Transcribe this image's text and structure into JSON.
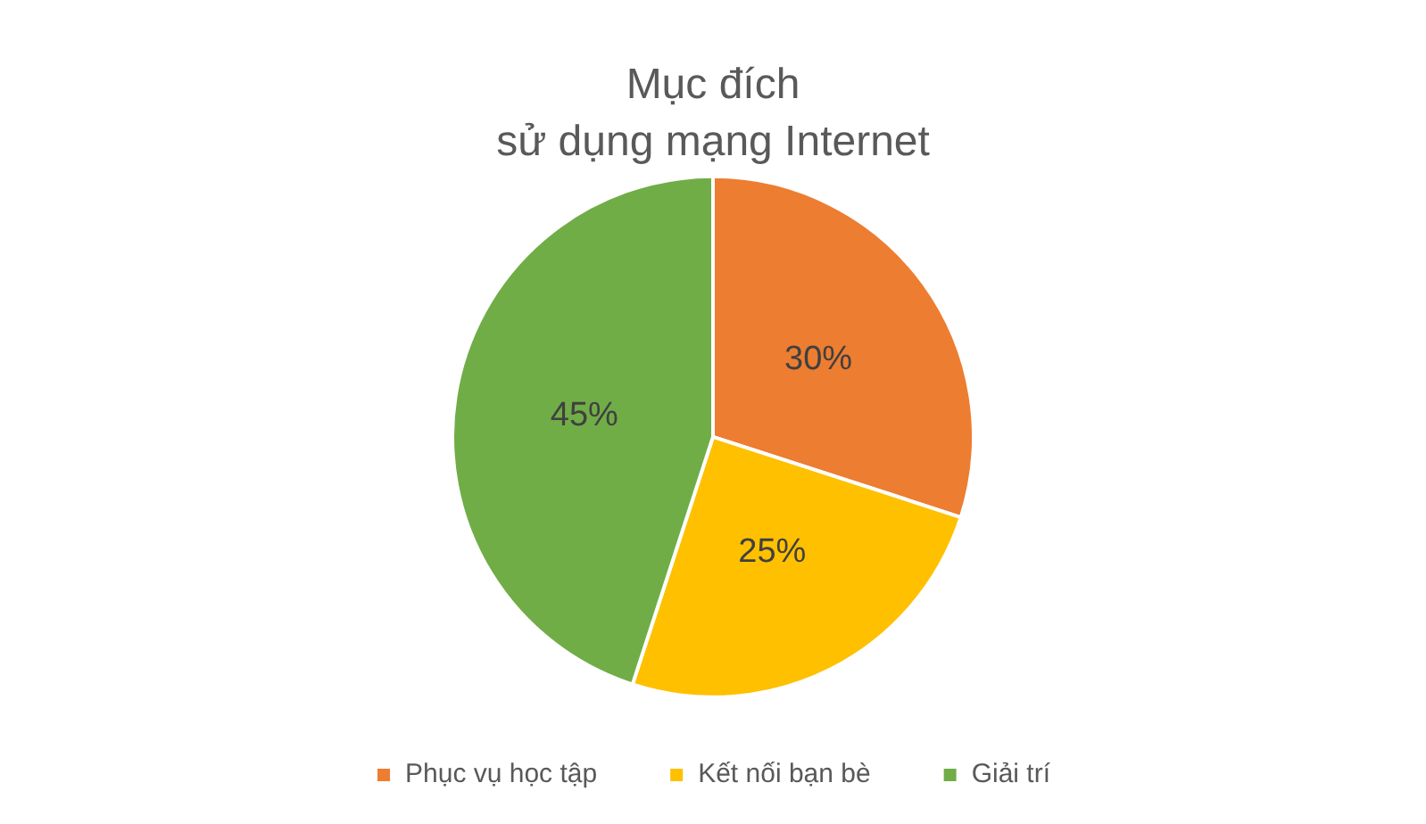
{
  "chart_data": {
    "type": "pie",
    "title": "Mục đích\nsử dụng mạng Internet",
    "categories": [
      "Phục vụ học tập",
      "Kết nối bạn bè",
      "Giải trí"
    ],
    "values": [
      30,
      25,
      45
    ],
    "colors": [
      "#ed7d31",
      "#ffc000",
      "#70ad47"
    ],
    "value_labels": [
      "30%",
      "25%",
      "45%"
    ],
    "legend": "bottom"
  }
}
